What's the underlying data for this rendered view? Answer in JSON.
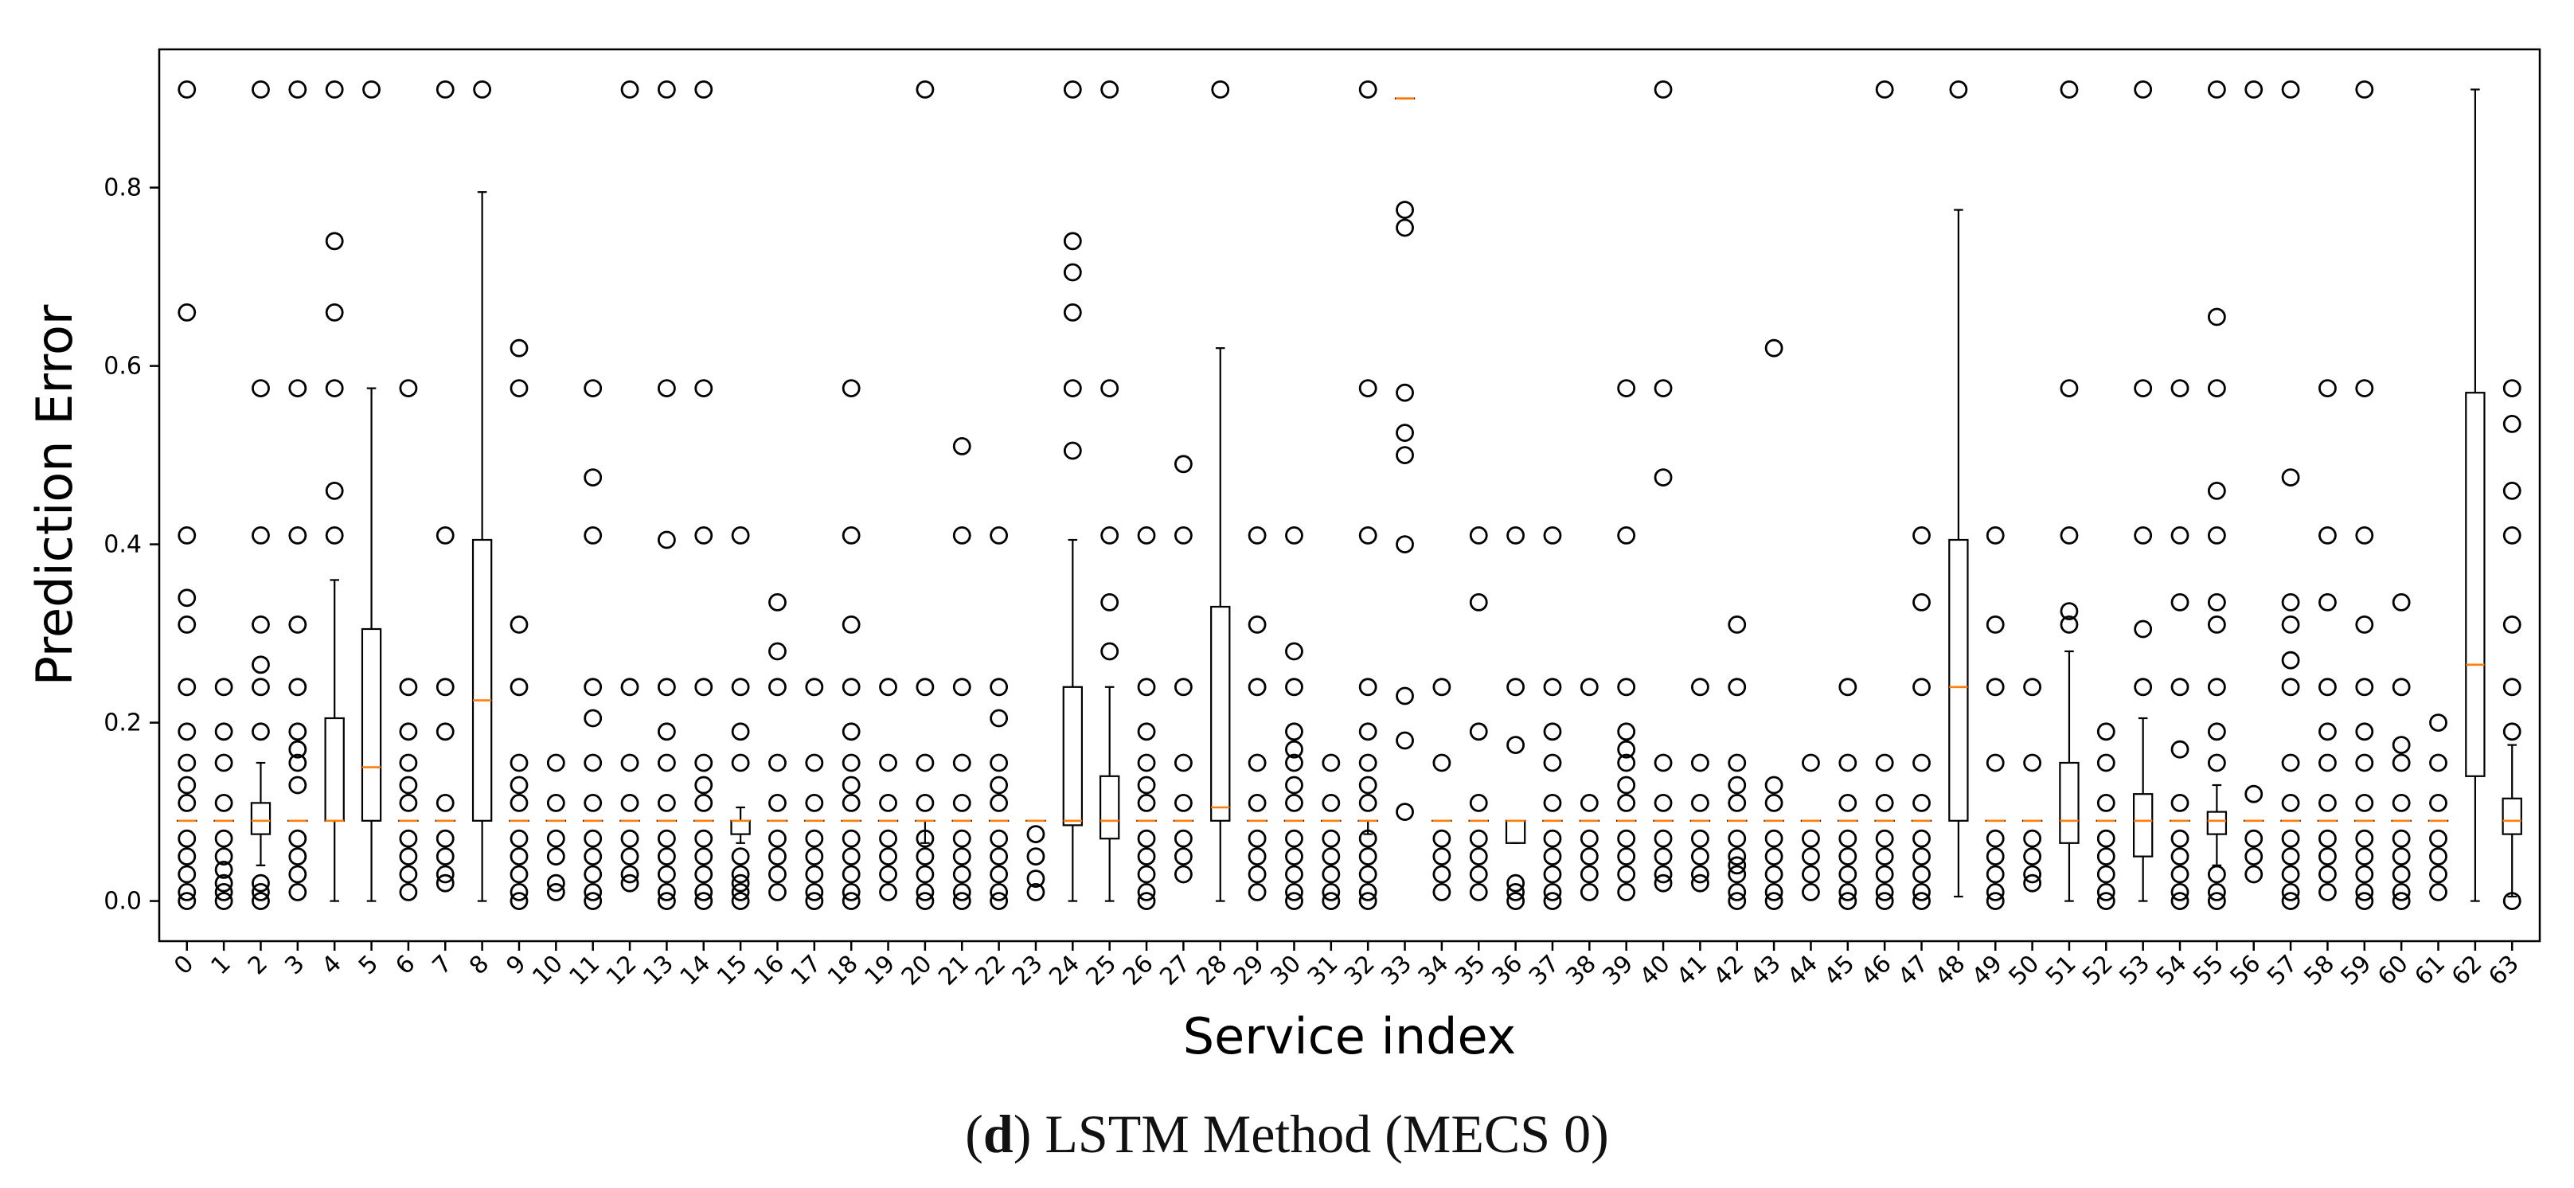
{
  "chart_data": {
    "type": "boxplot",
    "title": "",
    "xlabel": "Service index",
    "ylabel": "Prediction Error",
    "ylim": [
      -0.045,
      0.955
    ],
    "yticks": [
      0.0,
      0.2,
      0.4,
      0.6,
      0.8
    ],
    "ytick_labels": [
      "0.0",
      "0.2",
      "0.4",
      "0.6",
      "0.8"
    ],
    "box_color": "#000000",
    "median_color": "#ff7f0e",
    "categories": [
      "0",
      "1",
      "2",
      "3",
      "4",
      "5",
      "6",
      "7",
      "8",
      "9",
      "10",
      "11",
      "12",
      "13",
      "14",
      "15",
      "16",
      "17",
      "18",
      "19",
      "20",
      "21",
      "22",
      "23",
      "24",
      "25",
      "26",
      "27",
      "28",
      "29",
      "30",
      "31",
      "32",
      "33",
      "34",
      "35",
      "36",
      "37",
      "38",
      "39",
      "40",
      "41",
      "42",
      "43",
      "44",
      "45",
      "46",
      "47",
      "48",
      "49",
      "50",
      "51",
      "52",
      "53",
      "54",
      "55",
      "56",
      "57",
      "58",
      "59",
      "60",
      "61",
      "62",
      "63"
    ],
    "boxes": [
      {
        "lw": 0.09,
        "q1": 0.09,
        "med": 0.09,
        "q3": 0.09,
        "uw": 0.09,
        "out": [
          0.91,
          0.66,
          0.41,
          0.34,
          0.31,
          0.24,
          0.19,
          0.155,
          0.13,
          0.11,
          0.07,
          0.05,
          0.03,
          0.01,
          0.0
        ]
      },
      {
        "lw": 0.09,
        "q1": 0.09,
        "med": 0.09,
        "q3": 0.09,
        "uw": 0.09,
        "out": [
          0.24,
          0.19,
          0.155,
          0.11,
          0.07,
          0.05,
          0.035,
          0.02,
          0.01,
          0.0
        ]
      },
      {
        "lw": 0.04,
        "q1": 0.075,
        "med": 0.09,
        "q3": 0.11,
        "uw": 0.155,
        "out": [
          0.91,
          0.575,
          0.41,
          0.31,
          0.265,
          0.24,
          0.19,
          0.02,
          0.01,
          0.0
        ]
      },
      {
        "lw": 0.09,
        "q1": 0.09,
        "med": 0.09,
        "q3": 0.09,
        "uw": 0.09,
        "out": [
          0.91,
          0.575,
          0.41,
          0.31,
          0.24,
          0.19,
          0.17,
          0.155,
          0.13,
          0.07,
          0.05,
          0.03,
          0.01
        ]
      },
      {
        "lw": 0.0,
        "q1": 0.09,
        "med": 0.09,
        "q3": 0.205,
        "uw": 0.36,
        "out": [
          0.91,
          0.74,
          0.66,
          0.575,
          0.46,
          0.41
        ]
      },
      {
        "lw": 0.0,
        "q1": 0.09,
        "med": 0.15,
        "q3": 0.305,
        "uw": 0.575,
        "out": [
          0.91
        ]
      },
      {
        "lw": 0.09,
        "q1": 0.09,
        "med": 0.09,
        "q3": 0.09,
        "uw": 0.09,
        "out": [
          0.575,
          0.24,
          0.19,
          0.155,
          0.13,
          0.11,
          0.07,
          0.05,
          0.03,
          0.01
        ]
      },
      {
        "lw": 0.09,
        "q1": 0.09,
        "med": 0.09,
        "q3": 0.09,
        "uw": 0.09,
        "out": [
          0.91,
          0.41,
          0.24,
          0.19,
          0.11,
          0.07,
          0.05,
          0.03,
          0.02
        ]
      },
      {
        "lw": 0.0,
        "q1": 0.09,
        "med": 0.225,
        "q3": 0.405,
        "uw": 0.795,
        "out": [
          0.91
        ]
      },
      {
        "lw": 0.09,
        "q1": 0.09,
        "med": 0.09,
        "q3": 0.09,
        "uw": 0.09,
        "out": [
          0.62,
          0.575,
          0.31,
          0.24,
          0.155,
          0.13,
          0.11,
          0.07,
          0.05,
          0.03,
          0.01,
          0.0
        ]
      },
      {
        "lw": 0.09,
        "q1": 0.09,
        "med": 0.09,
        "q3": 0.09,
        "uw": 0.09,
        "out": [
          0.155,
          0.11,
          0.07,
          0.05,
          0.02,
          0.01
        ]
      },
      {
        "lw": 0.09,
        "q1": 0.09,
        "med": 0.09,
        "q3": 0.09,
        "uw": 0.09,
        "out": [
          0.575,
          0.475,
          0.41,
          0.24,
          0.205,
          0.155,
          0.11,
          0.07,
          0.05,
          0.03,
          0.01,
          0.0
        ]
      },
      {
        "lw": 0.09,
        "q1": 0.09,
        "med": 0.09,
        "q3": 0.09,
        "uw": 0.09,
        "out": [
          0.91,
          0.24,
          0.155,
          0.11,
          0.07,
          0.05,
          0.03,
          0.02
        ]
      },
      {
        "lw": 0.09,
        "q1": 0.09,
        "med": 0.09,
        "q3": 0.09,
        "uw": 0.09,
        "out": [
          0.91,
          0.575,
          0.405,
          0.24,
          0.19,
          0.155,
          0.11,
          0.07,
          0.05,
          0.03,
          0.01,
          0.0
        ]
      },
      {
        "lw": 0.09,
        "q1": 0.09,
        "med": 0.09,
        "q3": 0.09,
        "uw": 0.09,
        "out": [
          0.91,
          0.575,
          0.41,
          0.24,
          0.155,
          0.13,
          0.11,
          0.07,
          0.05,
          0.03,
          0.01,
          0.0
        ]
      },
      {
        "lw": 0.065,
        "q1": 0.075,
        "med": 0.09,
        "q3": 0.09,
        "uw": 0.105,
        "out": [
          0.41,
          0.24,
          0.19,
          0.155,
          0.05,
          0.03,
          0.02,
          0.01,
          0.0
        ]
      },
      {
        "lw": 0.09,
        "q1": 0.09,
        "med": 0.09,
        "q3": 0.09,
        "uw": 0.09,
        "out": [
          0.335,
          0.28,
          0.24,
          0.155,
          0.11,
          0.07,
          0.05,
          0.03,
          0.01
        ]
      },
      {
        "lw": 0.09,
        "q1": 0.09,
        "med": 0.09,
        "q3": 0.09,
        "uw": 0.09,
        "out": [
          0.24,
          0.155,
          0.11,
          0.07,
          0.05,
          0.03,
          0.01,
          0.0
        ]
      },
      {
        "lw": 0.09,
        "q1": 0.09,
        "med": 0.09,
        "q3": 0.09,
        "uw": 0.09,
        "out": [
          0.575,
          0.41,
          0.31,
          0.24,
          0.19,
          0.155,
          0.13,
          0.11,
          0.07,
          0.05,
          0.03,
          0.01,
          0.0
        ]
      },
      {
        "lw": 0.09,
        "q1": 0.09,
        "med": 0.09,
        "q3": 0.09,
        "uw": 0.09,
        "out": [
          0.24,
          0.155,
          0.11,
          0.07,
          0.05,
          0.03,
          0.01
        ]
      },
      {
        "lw": 0.065,
        "q1": 0.09,
        "med": 0.09,
        "q3": 0.09,
        "uw": 0.09,
        "out": [
          0.91,
          0.24,
          0.155,
          0.11,
          0.07,
          0.05,
          0.03,
          0.01,
          0.0
        ]
      },
      {
        "lw": 0.09,
        "q1": 0.09,
        "med": 0.09,
        "q3": 0.09,
        "uw": 0.09,
        "out": [
          0.51,
          0.41,
          0.24,
          0.155,
          0.11,
          0.07,
          0.05,
          0.03,
          0.01,
          0.0
        ]
      },
      {
        "lw": 0.09,
        "q1": 0.09,
        "med": 0.09,
        "q3": 0.09,
        "uw": 0.09,
        "out": [
          0.41,
          0.24,
          0.205,
          0.155,
          0.13,
          0.11,
          0.07,
          0.05,
          0.03,
          0.01,
          0.0
        ]
      },
      {
        "lw": 0.09,
        "q1": 0.09,
        "med": 0.09,
        "q3": 0.09,
        "uw": 0.09,
        "out": [
          0.075,
          0.05,
          0.025,
          0.01
        ]
      },
      {
        "lw": 0.0,
        "q1": 0.085,
        "med": 0.09,
        "q3": 0.24,
        "uw": 0.405,
        "out": [
          0.91,
          0.74,
          0.705,
          0.66,
          0.575,
          0.505
        ]
      },
      {
        "lw": 0.0,
        "q1": 0.07,
        "med": 0.09,
        "q3": 0.14,
        "uw": 0.24,
        "out": [
          0.91,
          0.575,
          0.41,
          0.335,
          0.28
        ]
      },
      {
        "lw": 0.09,
        "q1": 0.09,
        "med": 0.09,
        "q3": 0.09,
        "uw": 0.09,
        "out": [
          0.41,
          0.24,
          0.19,
          0.155,
          0.13,
          0.11,
          0.07,
          0.05,
          0.03,
          0.01,
          0.0
        ]
      },
      {
        "lw": 0.09,
        "q1": 0.09,
        "med": 0.09,
        "q3": 0.09,
        "uw": 0.09,
        "out": [
          0.49,
          0.41,
          0.24,
          0.155,
          0.11,
          0.07,
          0.05,
          0.03
        ]
      },
      {
        "lw": 0.0,
        "q1": 0.09,
        "med": 0.105,
        "q3": 0.33,
        "uw": 0.62,
        "out": [
          0.91
        ]
      },
      {
        "lw": 0.09,
        "q1": 0.09,
        "med": 0.09,
        "q3": 0.09,
        "uw": 0.09,
        "out": [
          0.41,
          0.31,
          0.24,
          0.155,
          0.11,
          0.07,
          0.05,
          0.03,
          0.01
        ]
      },
      {
        "lw": 0.09,
        "q1": 0.09,
        "med": 0.09,
        "q3": 0.09,
        "uw": 0.09,
        "out": [
          0.41,
          0.28,
          0.24,
          0.19,
          0.17,
          0.155,
          0.13,
          0.11,
          0.07,
          0.05,
          0.03,
          0.01,
          0.0
        ]
      },
      {
        "lw": 0.09,
        "q1": 0.09,
        "med": 0.09,
        "q3": 0.09,
        "uw": 0.09,
        "out": [
          0.155,
          0.11,
          0.07,
          0.05,
          0.03,
          0.01,
          0.0
        ]
      },
      {
        "lw": 0.075,
        "q1": 0.09,
        "med": 0.09,
        "q3": 0.09,
        "uw": 0.09,
        "out": [
          0.91,
          0.575,
          0.41,
          0.24,
          0.19,
          0.155,
          0.13,
          0.11,
          0.07,
          0.05,
          0.03,
          0.01,
          0.0
        ]
      },
      {
        "lw": 0.9,
        "q1": 0.9,
        "med": 0.9,
        "q3": 0.9,
        "uw": 0.9,
        "out": [
          0.775,
          0.755,
          0.57,
          0.525,
          0.5,
          0.4,
          0.23,
          0.18,
          0.1
        ]
      },
      {
        "lw": 0.09,
        "q1": 0.09,
        "med": 0.09,
        "q3": 0.09,
        "uw": 0.09,
        "out": [
          0.24,
          0.155,
          0.07,
          0.05,
          0.03,
          0.01
        ]
      },
      {
        "lw": 0.09,
        "q1": 0.09,
        "med": 0.09,
        "q3": 0.09,
        "uw": 0.09,
        "out": [
          0.41,
          0.335,
          0.19,
          0.11,
          0.07,
          0.05,
          0.03,
          0.01
        ]
      },
      {
        "lw": 0.065,
        "q1": 0.065,
        "med": 0.09,
        "q3": 0.09,
        "uw": 0.09,
        "out": [
          0.41,
          0.24,
          0.175,
          0.02,
          0.01,
          0.0
        ]
      },
      {
        "lw": 0.09,
        "q1": 0.09,
        "med": 0.09,
        "q3": 0.09,
        "uw": 0.09,
        "out": [
          0.41,
          0.24,
          0.19,
          0.155,
          0.11,
          0.07,
          0.05,
          0.03,
          0.01,
          0.0
        ]
      },
      {
        "lw": 0.09,
        "q1": 0.09,
        "med": 0.09,
        "q3": 0.09,
        "uw": 0.09,
        "out": [
          0.24,
          0.11,
          0.07,
          0.05,
          0.03,
          0.01
        ]
      },
      {
        "lw": 0.09,
        "q1": 0.09,
        "med": 0.09,
        "q3": 0.09,
        "uw": 0.09,
        "out": [
          0.575,
          0.41,
          0.24,
          0.19,
          0.17,
          0.155,
          0.13,
          0.11,
          0.07,
          0.05,
          0.03,
          0.01
        ]
      },
      {
        "lw": 0.09,
        "q1": 0.09,
        "med": 0.09,
        "q3": 0.09,
        "uw": 0.09,
        "out": [
          0.91,
          0.575,
          0.475,
          0.155,
          0.11,
          0.07,
          0.05,
          0.03,
          0.02
        ]
      },
      {
        "lw": 0.09,
        "q1": 0.09,
        "med": 0.09,
        "q3": 0.09,
        "uw": 0.09,
        "out": [
          0.24,
          0.155,
          0.11,
          0.07,
          0.05,
          0.03,
          0.02
        ]
      },
      {
        "lw": 0.09,
        "q1": 0.09,
        "med": 0.09,
        "q3": 0.09,
        "uw": 0.09,
        "out": [
          0.31,
          0.24,
          0.155,
          0.13,
          0.11,
          0.07,
          0.05,
          0.04,
          0.03,
          0.01,
          0.0
        ]
      },
      {
        "lw": 0.09,
        "q1": 0.09,
        "med": 0.09,
        "q3": 0.09,
        "uw": 0.09,
        "out": [
          0.62,
          0.13,
          0.11,
          0.07,
          0.05,
          0.03,
          0.01,
          0.0
        ]
      },
      {
        "lw": 0.09,
        "q1": 0.09,
        "med": 0.09,
        "q3": 0.09,
        "uw": 0.09,
        "out": [
          0.155,
          0.07,
          0.05,
          0.03,
          0.01
        ]
      },
      {
        "lw": 0.09,
        "q1": 0.09,
        "med": 0.09,
        "q3": 0.09,
        "uw": 0.09,
        "out": [
          0.24,
          0.155,
          0.11,
          0.07,
          0.05,
          0.03,
          0.01,
          0.0
        ]
      },
      {
        "lw": 0.09,
        "q1": 0.09,
        "med": 0.09,
        "q3": 0.09,
        "uw": 0.09,
        "out": [
          0.91,
          0.155,
          0.11,
          0.07,
          0.05,
          0.03,
          0.01,
          0.0
        ]
      },
      {
        "lw": 0.09,
        "q1": 0.09,
        "med": 0.09,
        "q3": 0.09,
        "uw": 0.09,
        "out": [
          0.41,
          0.335,
          0.24,
          0.155,
          0.11,
          0.07,
          0.05,
          0.03,
          0.01,
          0.0
        ]
      },
      {
        "lw": 0.005,
        "q1": 0.09,
        "med": 0.24,
        "q3": 0.405,
        "uw": 0.775,
        "out": [
          0.91
        ]
      },
      {
        "lw": 0.09,
        "q1": 0.09,
        "med": 0.09,
        "q3": 0.09,
        "uw": 0.09,
        "out": [
          0.41,
          0.31,
          0.24,
          0.155,
          0.07,
          0.05,
          0.03,
          0.01,
          0.0
        ]
      },
      {
        "lw": 0.09,
        "q1": 0.09,
        "med": 0.09,
        "q3": 0.09,
        "uw": 0.09,
        "out": [
          0.24,
          0.155,
          0.07,
          0.05,
          0.03,
          0.02
        ]
      },
      {
        "lw": 0.0,
        "q1": 0.065,
        "med": 0.09,
        "q3": 0.155,
        "uw": 0.28,
        "out": [
          0.91,
          0.575,
          0.41,
          0.325,
          0.31
        ]
      },
      {
        "lw": 0.09,
        "q1": 0.09,
        "med": 0.09,
        "q3": 0.09,
        "uw": 0.09,
        "out": [
          0.19,
          0.155,
          0.11,
          0.07,
          0.05,
          0.03,
          0.01,
          0.0
        ]
      },
      {
        "lw": 0.0,
        "q1": 0.05,
        "med": 0.09,
        "q3": 0.12,
        "uw": 0.205,
        "out": [
          0.91,
          0.575,
          0.41,
          0.305,
          0.24
        ]
      },
      {
        "lw": 0.09,
        "q1": 0.09,
        "med": 0.09,
        "q3": 0.09,
        "uw": 0.09,
        "out": [
          0.575,
          0.41,
          0.335,
          0.24,
          0.17,
          0.11,
          0.07,
          0.05,
          0.03,
          0.01,
          0.0
        ]
      },
      {
        "lw": 0.04,
        "q1": 0.075,
        "med": 0.09,
        "q3": 0.1,
        "uw": 0.13,
        "out": [
          0.91,
          0.655,
          0.575,
          0.46,
          0.41,
          0.335,
          0.31,
          0.24,
          0.19,
          0.155,
          0.03,
          0.01,
          0.0
        ]
      },
      {
        "lw": 0.09,
        "q1": 0.09,
        "med": 0.09,
        "q3": 0.09,
        "uw": 0.09,
        "out": [
          0.91,
          0.12,
          0.07,
          0.05,
          0.03
        ]
      },
      {
        "lw": 0.09,
        "q1": 0.09,
        "med": 0.09,
        "q3": 0.09,
        "uw": 0.09,
        "out": [
          0.91,
          0.475,
          0.335,
          0.31,
          0.27,
          0.24,
          0.155,
          0.11,
          0.07,
          0.05,
          0.03,
          0.01,
          0.0
        ]
      },
      {
        "lw": 0.09,
        "q1": 0.09,
        "med": 0.09,
        "q3": 0.09,
        "uw": 0.09,
        "out": [
          0.575,
          0.41,
          0.335,
          0.24,
          0.19,
          0.155,
          0.11,
          0.07,
          0.05,
          0.03,
          0.01
        ]
      },
      {
        "lw": 0.09,
        "q1": 0.09,
        "med": 0.09,
        "q3": 0.09,
        "uw": 0.09,
        "out": [
          0.91,
          0.575,
          0.41,
          0.31,
          0.24,
          0.19,
          0.155,
          0.11,
          0.07,
          0.05,
          0.03,
          0.01,
          0.0
        ]
      },
      {
        "lw": 0.09,
        "q1": 0.09,
        "med": 0.09,
        "q3": 0.09,
        "uw": 0.09,
        "out": [
          0.335,
          0.24,
          0.175,
          0.155,
          0.11,
          0.07,
          0.05,
          0.03,
          0.01,
          0.0
        ]
      },
      {
        "lw": 0.09,
        "q1": 0.09,
        "med": 0.09,
        "q3": 0.09,
        "uw": 0.09,
        "out": [
          0.2,
          0.155,
          0.11,
          0.07,
          0.05,
          0.03,
          0.01
        ]
      },
      {
        "lw": 0.0,
        "q1": 0.14,
        "med": 0.265,
        "q3": 0.57,
        "uw": 0.91,
        "out": []
      },
      {
        "lw": 0.005,
        "q1": 0.075,
        "med": 0.09,
        "q3": 0.115,
        "uw": 0.175,
        "out": [
          0.575,
          0.535,
          0.46,
          0.41,
          0.31,
          0.24,
          0.19,
          0.0
        ]
      }
    ]
  },
  "caption": {
    "label": "d",
    "text": ") LSTM Method (MECS 0)",
    "open_paren": "("
  }
}
